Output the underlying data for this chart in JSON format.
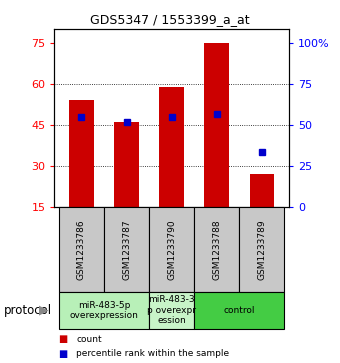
{
  "title": "GDS5347 / 1553399_a_at",
  "samples": [
    "GSM1233786",
    "GSM1233787",
    "GSM1233790",
    "GSM1233788",
    "GSM1233789"
  ],
  "bar_heights": [
    54,
    46,
    59,
    75,
    27
  ],
  "bar_bottom": 15,
  "blue_y": [
    48,
    46,
    48,
    49,
    35
  ],
  "left_yticks": [
    15,
    30,
    45,
    60,
    75
  ],
  "right_yticklabels": [
    "0",
    "25",
    "50",
    "75",
    "100%"
  ],
  "ylim_left": [
    15,
    80
  ],
  "groups": [
    {
      "label": "miR-483-5p\noverexpression",
      "samples": [
        0,
        1
      ],
      "color": "#b8f0b8"
    },
    {
      "label": "miR-483-3\np overexpr\nession",
      "samples": [
        2
      ],
      "color": "#c8f4c8"
    },
    {
      "label": "control",
      "samples": [
        3,
        4
      ],
      "color": "#44cc44"
    }
  ],
  "protocol_label": "protocol",
  "bar_color": "#cc0000",
  "blue_color": "#0000cc",
  "background_color": "#ffffff",
  "sample_box_color": "#c8c8c8"
}
